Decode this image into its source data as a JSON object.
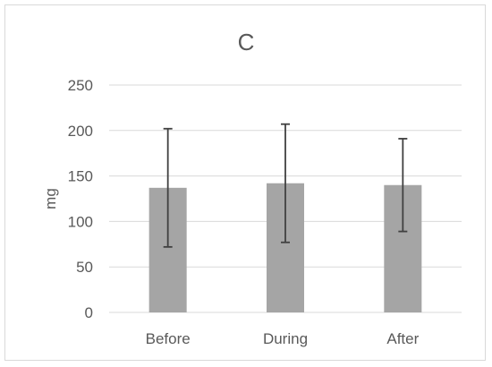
{
  "chart_data": {
    "type": "bar",
    "title": "C",
    "xlabel": "",
    "ylabel": "mg",
    "categories": [
      "Before",
      "During",
      "After"
    ],
    "values": [
      137,
      142,
      140
    ],
    "error": [
      65,
      65,
      51
    ],
    "ylim": [
      0,
      250
    ],
    "yticks": [
      0,
      50,
      100,
      150,
      200,
      250
    ],
    "grid": true,
    "bar_color": "#a5a5a5",
    "error_color": "#404040",
    "grid_color": "#d9d9d9"
  }
}
